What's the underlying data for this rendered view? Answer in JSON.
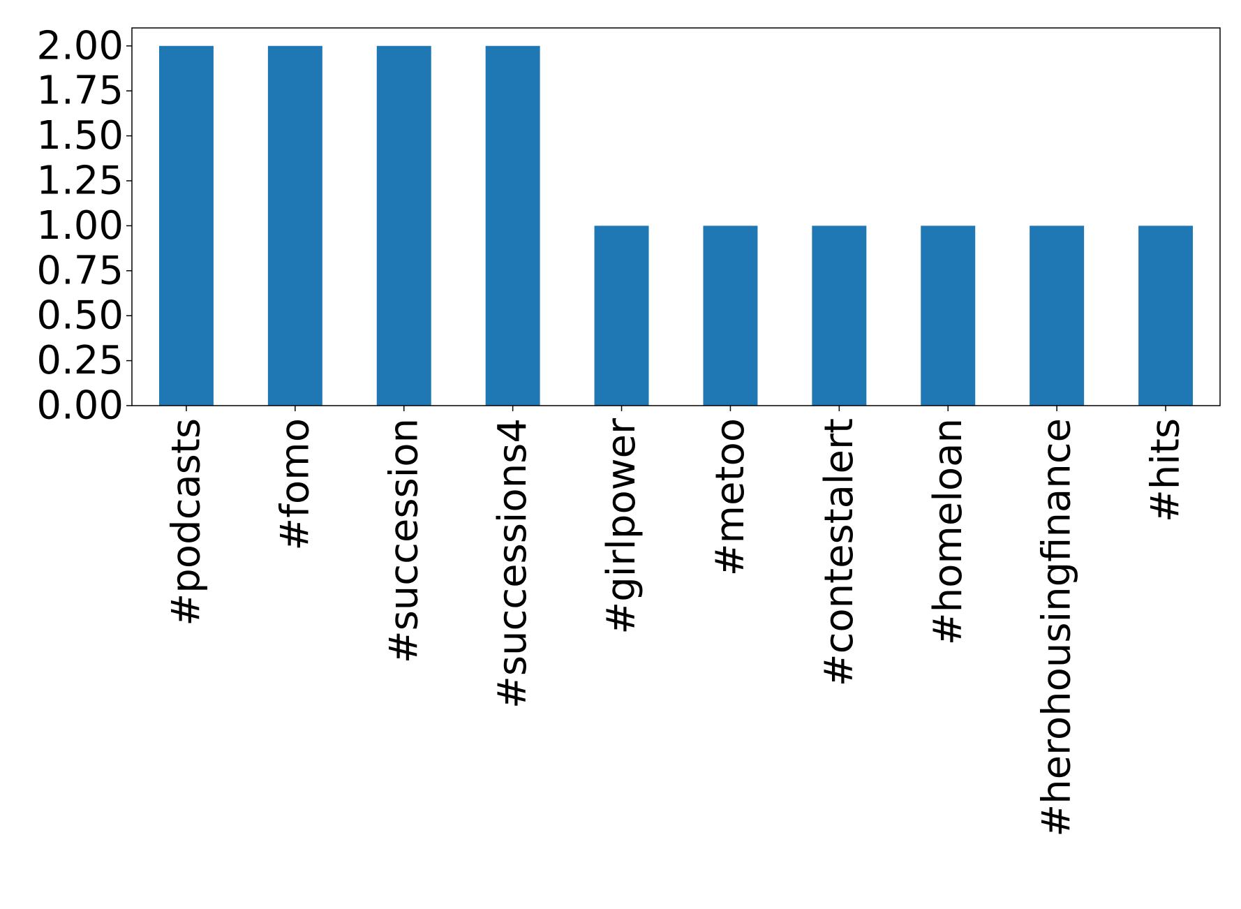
{
  "chart_data": {
    "type": "bar",
    "categories": [
      "#podcasts",
      "#fomo",
      "#succession",
      "#successions4",
      "#girlpower",
      "#metoo",
      "#contestalert",
      "#homeloan",
      "#herohousingfinance",
      "#hits"
    ],
    "values": [
      2,
      2,
      2,
      2,
      1,
      1,
      1,
      1,
      1,
      1
    ],
    "ylim": [
      0,
      2.1
    ],
    "yticks": [
      0,
      0.25,
      0.5,
      0.75,
      1.0,
      1.25,
      1.5,
      1.75,
      2.0
    ],
    "ytick_labels": [
      "0.00",
      "0.25",
      "0.50",
      "0.75",
      "1.00",
      "1.25",
      "1.50",
      "1.75",
      "2.00"
    ],
    "bar_color": "#1f77b4",
    "grid": false,
    "legend": "none",
    "x_label_rotation": "vertical"
  }
}
